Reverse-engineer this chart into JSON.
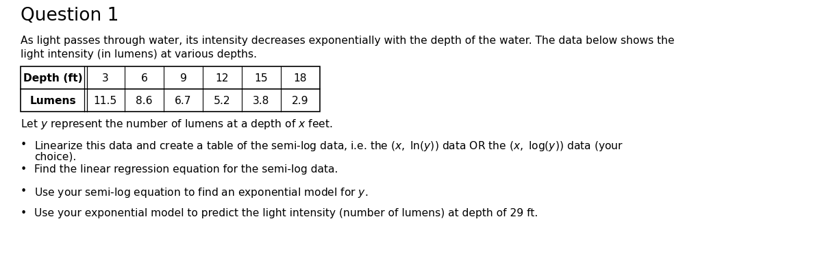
{
  "title": "Question 1",
  "intro_line1": "As light passes through water, its intensity decreases exponentially with the depth of the water. The data below shows the",
  "intro_line2": "light intensity (in lumens) at various depths.",
  "table_header": [
    "Depth (ft)",
    "3",
    "6",
    "9",
    "12",
    "15",
    "18"
  ],
  "table_row": [
    "Lumens",
    "11.5",
    "8.6",
    "6.7",
    "5.2",
    "3.8",
    "2.9"
  ],
  "let_y_text": "Let $y$ represent the number of lumens at a depth of $x$ feet.",
  "bullet1_main": "Linearize this data and create a table of the semi-log data, i.e. the $(x,\\ \\ln(y))$ data OR the $(x,\\ \\log(y))$ data (your",
  "bullet1_cont": "choice).",
  "bullet2": "Find the linear regression equation for the semi-log data.",
  "bullet3": "Use your semi-log equation to find an exponential model for $y$.",
  "bullet4": "Use your exponential model to predict the light intensity (number of lumens) at depth of 29 ft.",
  "background_color": "#ffffff",
  "text_color": "#000000",
  "title_fontsize": 19,
  "body_fontsize": 11.2,
  "table_fontsize": 11.2
}
